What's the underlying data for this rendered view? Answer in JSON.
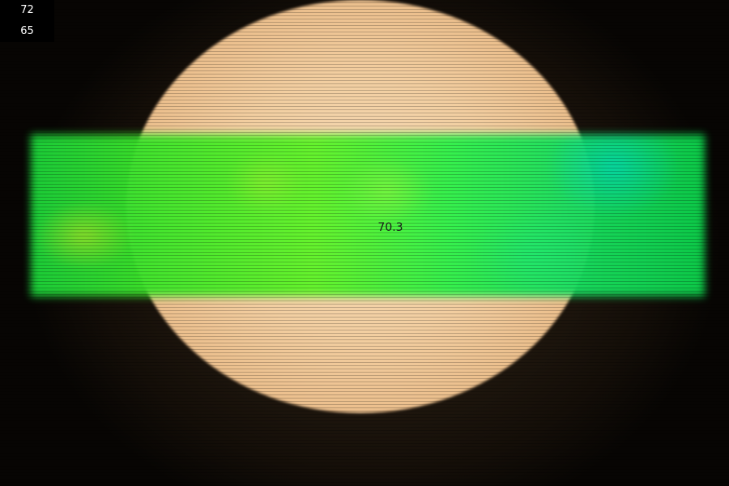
{
  "hud": {
    "top_value": "72",
    "bottom_value": "65"
  },
  "bar": {
    "value": "70.3"
  },
  "colors": {
    "background": "#0e0a06",
    "lens": "#fbd7a7",
    "bar_green": "#3ee62a",
    "bar_teal": "#00dcbe",
    "hud_background": "#000000",
    "hud_text": "#ffffff"
  }
}
